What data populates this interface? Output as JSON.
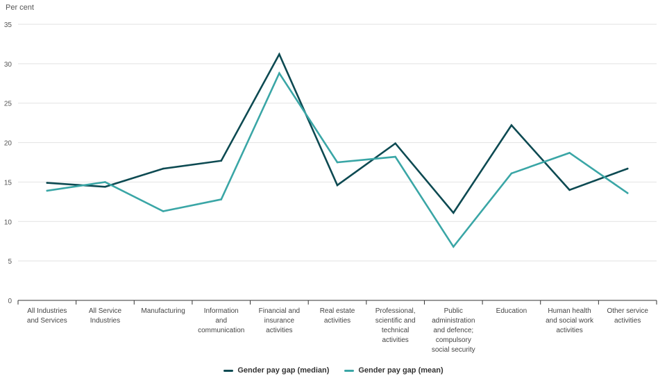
{
  "chart_data": {
    "type": "line",
    "ylabel": "Per cent",
    "ylim": [
      0,
      35
    ],
    "yticks": [
      0,
      5,
      10,
      15,
      20,
      25,
      30,
      35
    ],
    "grid": true,
    "legend_position": "bottom-center",
    "categories": [
      [
        "All Industries",
        "and Services"
      ],
      [
        "All Service",
        "Industries"
      ],
      [
        "Manufacturing"
      ],
      [
        "Information",
        "and",
        "communication"
      ],
      [
        "Financial and",
        "insurance",
        "activities"
      ],
      [
        "Real estate",
        "activities"
      ],
      [
        "Professional,",
        "scientific and",
        "technical",
        "activities"
      ],
      [
        "Public",
        "administration",
        "and defence;",
        "compulsory",
        "social security"
      ],
      [
        "Education"
      ],
      [
        "Human health",
        "and social work",
        "activities"
      ],
      [
        "Other service",
        "activities"
      ]
    ],
    "series": [
      {
        "name": "Gender pay gap (median)",
        "color": "#0d4a52",
        "values": [
          14.9,
          14.4,
          16.7,
          17.7,
          31.2,
          14.6,
          19.9,
          11.1,
          22.2,
          14.0,
          16.7
        ]
      },
      {
        "name": "Gender pay gap (mean)",
        "color": "#3aa6a6",
        "values": [
          13.9,
          15.0,
          11.3,
          12.8,
          28.8,
          17.5,
          18.2,
          6.8,
          16.1,
          18.7,
          13.6
        ]
      }
    ]
  }
}
